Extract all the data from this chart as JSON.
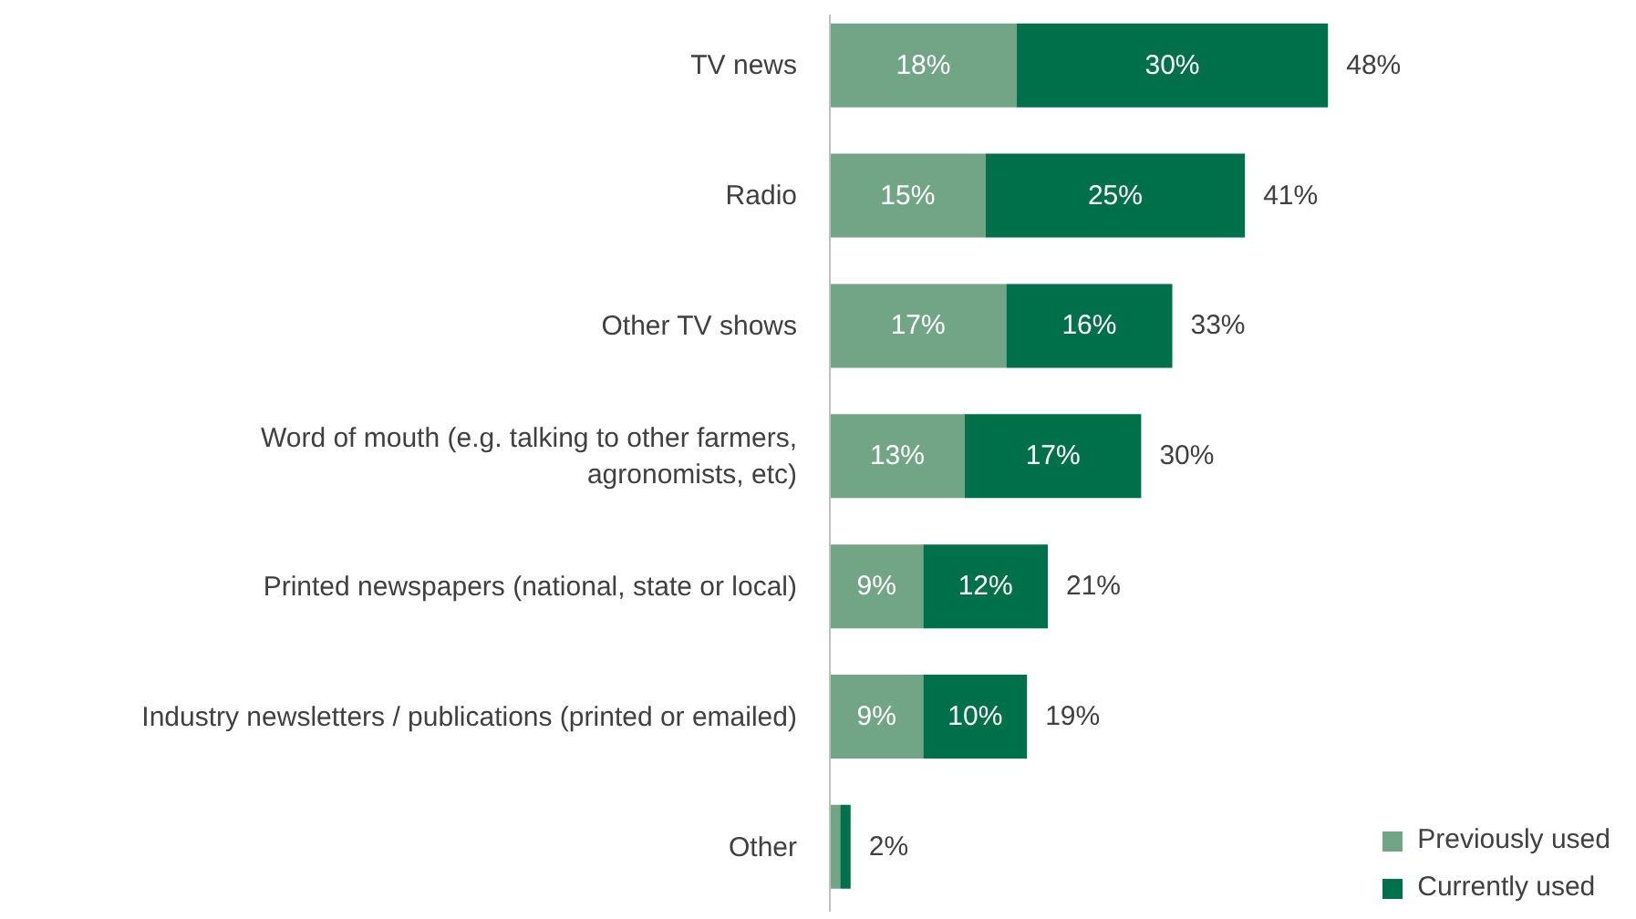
{
  "chart_data": {
    "type": "bar",
    "orientation": "horizontal",
    "stacked": true,
    "categories": [
      "TV news",
      "Radio",
      "Other TV shows",
      "Word of mouth (e.g. talking to other farmers, agronomists, etc)",
      "Printed newspapers (national, state or local)",
      "Industry newsletters / publications (printed or emailed)",
      "Other"
    ],
    "series": [
      {
        "name": "Previously used",
        "color": "#72a486",
        "values": [
          18,
          15,
          17,
          13,
          9,
          9,
          1
        ],
        "value_labels": [
          "18%",
          "15%",
          "17%",
          "13%",
          "9%",
          "9%",
          null
        ]
      },
      {
        "name": "Currently used",
        "color": "#00704a",
        "values": [
          30,
          25,
          16,
          17,
          12,
          10,
          1
        ],
        "value_labels": [
          "30%",
          "25%",
          "16%",
          "17%",
          "12%",
          "10%",
          null
        ]
      }
    ],
    "totals": [
      "48%",
      "41%",
      "33%",
      "30%",
      "21%",
      "19%",
      "2%"
    ],
    "legend": "bottom right"
  }
}
